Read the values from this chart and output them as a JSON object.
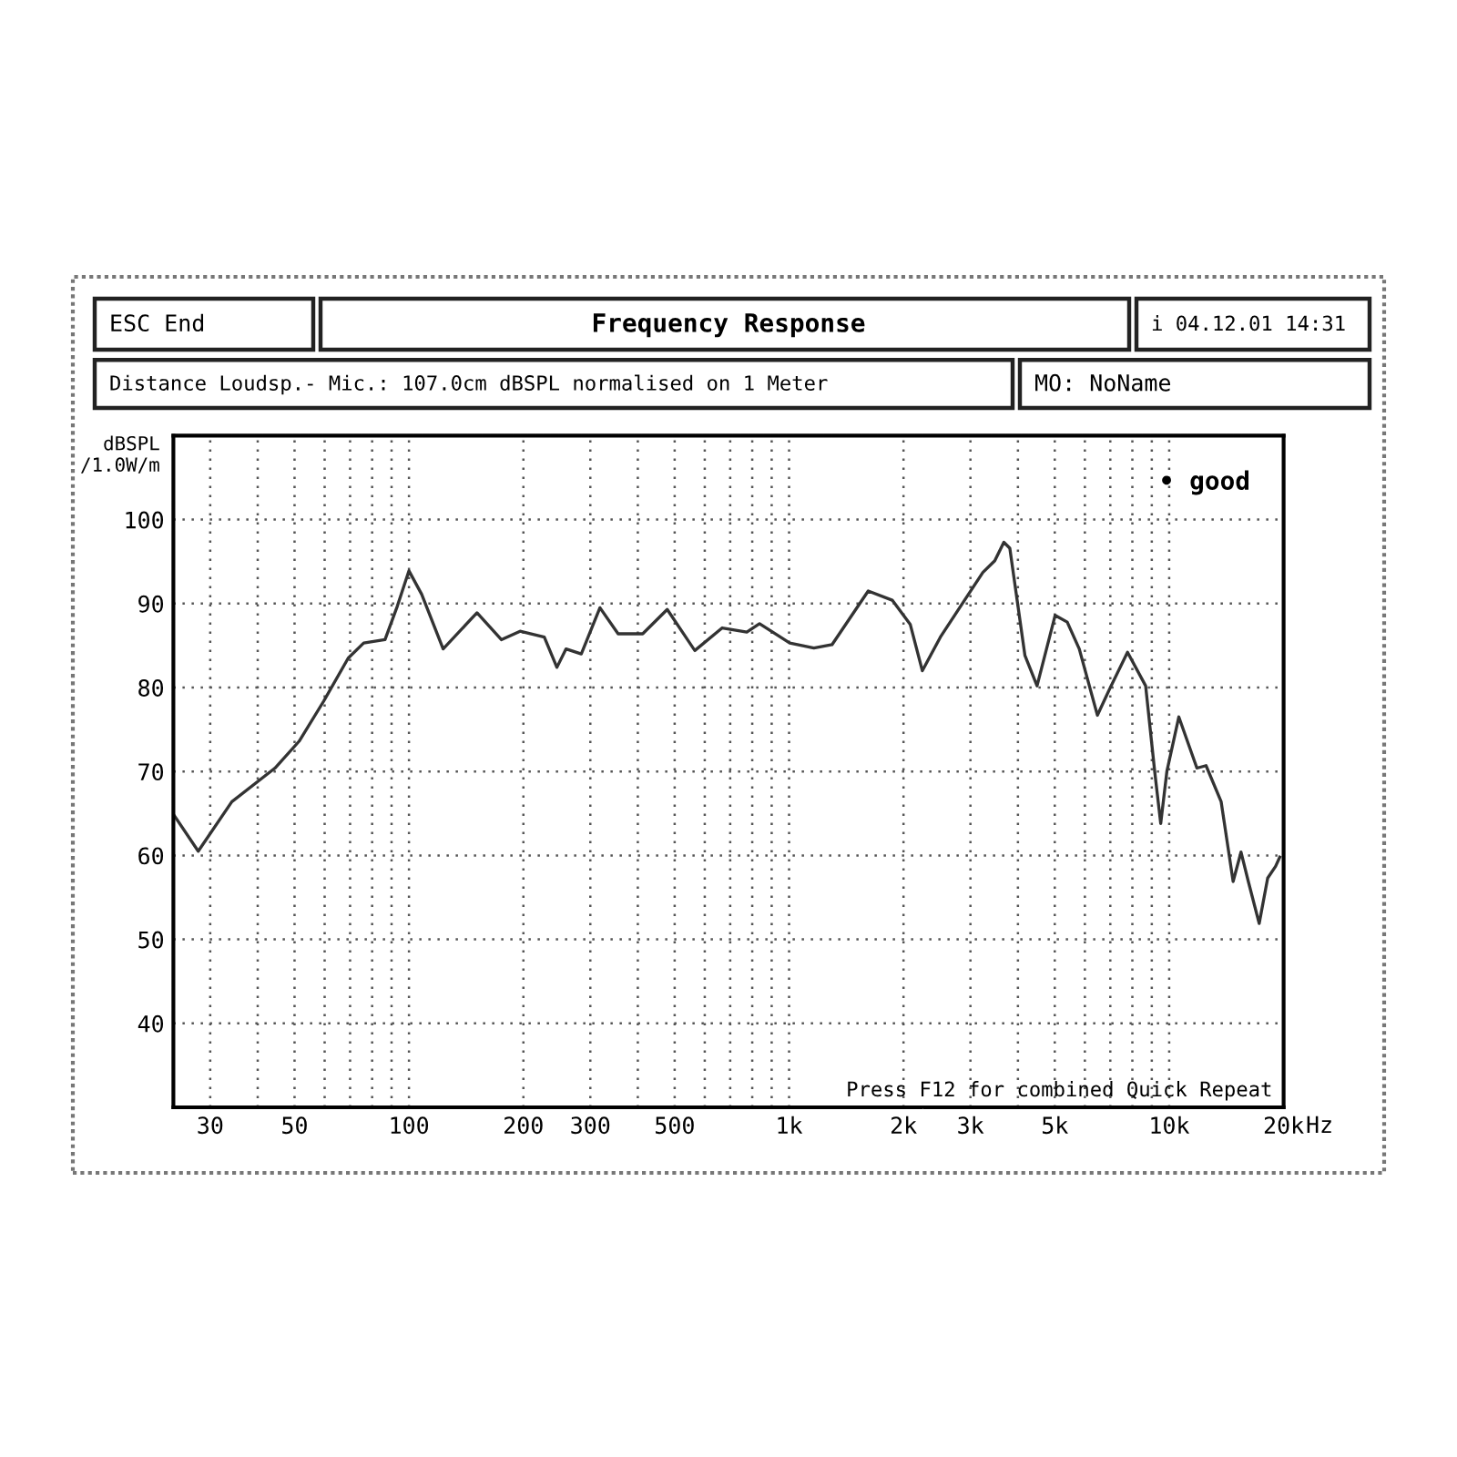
{
  "chart_data": {
    "type": "line",
    "title": "Frequency Response",
    "ylabel": "dBSPL\n/1.0W/m",
    "annotations": [
      "ESC End",
      "i 04.12.01 14:31",
      "Distance Loudsp.- Mic.: 107.0cm dBSPL normalised on 1 Meter",
      "MO: NoName",
      "• good",
      "Press F12 for combined Quick Repeat"
    ],
    "x": [
      24,
      27.9,
      34.2,
      44.4,
      51.4,
      59.7,
      69.2,
      76,
      86.5,
      93.2,
      100,
      108,
      123,
      151,
      175,
      196,
      227,
      245,
      259,
      284,
      318,
      355,
      412,
      478,
      565,
      667,
      774,
      836,
      1004,
      1162,
      1297,
      1615,
      1868,
      2084,
      2242,
      2500,
      2895,
      3234,
      3477,
      3673,
      3808,
      4174,
      4491,
      5012,
      5392,
      5800,
      6473,
      6966,
      7769,
      8670,
      9160,
      9500,
      9860,
      10600,
      11830,
      12500,
      13700,
      14730,
      15450,
      16150,
      17250,
      18160,
      19050,
      19540
    ],
    "series": [
      {
        "color": "#333333",
        "values": [
          64.9,
          60.5,
          66.4,
          70.4,
          73.6,
          78.4,
          83.5,
          85.3,
          85.7,
          89.7,
          93.9,
          91.1,
          84.6,
          88.9,
          85.7,
          86.7,
          86.0,
          82.4,
          84.6,
          84.0,
          89.5,
          86.4,
          86.4,
          89.3,
          84.4,
          87.1,
          86.6,
          87.6,
          85.3,
          84.7,
          85.1,
          91.5,
          90.4,
          87.5,
          82.0,
          86.0,
          90.4,
          93.7,
          95.1,
          97.3,
          96.6,
          83.8,
          80.2,
          88.6,
          87.8,
          84.6,
          76.7,
          79.8,
          84.2,
          80.2,
          70.0,
          63.8,
          70.0,
          76.5,
          70.4,
          70.7,
          66.4,
          56.9,
          60.4,
          56.9,
          51.9,
          57.3,
          58.7,
          59.8
        ]
      }
    ],
    "log": "x",
    "xlim": [
      24,
      20000
    ],
    "xticks": [
      30,
      50,
      100,
      200,
      300,
      500,
      {
        "value": 1000,
        "label": "1k"
      },
      {
        "value": 2000,
        "label": "2k"
      },
      {
        "value": 3000,
        "label": "3k"
      },
      {
        "value": 5000,
        "label": "5k"
      },
      {
        "value": 10000,
        "label": "10k"
      },
      {
        "value": 20000,
        "label": "20k"
      }
    ],
    "xlabel": "Hz",
    "ylim": [
      30,
      110
    ],
    "yticks": [
      40,
      50,
      60,
      70,
      80,
      90,
      100
    ],
    "grid": true,
    "marker": "none",
    "line_style": "solid"
  }
}
